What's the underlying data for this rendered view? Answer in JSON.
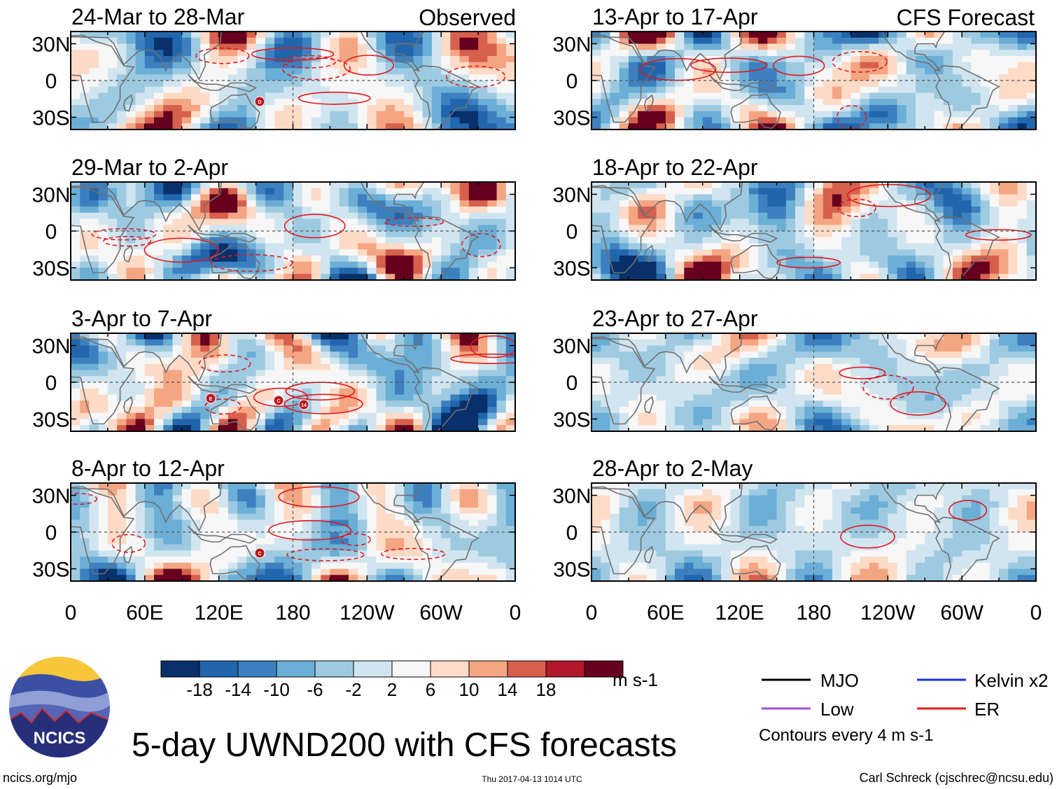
{
  "figure": {
    "title": "5-day UWND200 with CFS forecasts",
    "source_url": "ncics.org/mjo",
    "timestamp": "Thu 2017-04-13 1014 UTC",
    "credit": "Carl Schreck (cjschrec@ncsu.edu)",
    "logo_text": "NCICS"
  },
  "columns": {
    "left_label": "Observed",
    "right_label": "CFS Forecast"
  },
  "colors": {
    "land": "#707070",
    "er_contour": "#e0191f",
    "mjo": "#000000",
    "kelvin": "#1a2fe0",
    "low": "#a64dd9"
  },
  "chart_data": {
    "type": "heatmap",
    "variable": "200-hPa zonal wind anomaly (5-day mean)",
    "x_ticks": [
      "0",
      "60E",
      "120E",
      "180",
      "120W",
      "60W",
      "0"
    ],
    "x_tick_values": [
      0,
      60,
      120,
      180,
      240,
      300,
      360
    ],
    "y_ticks": [
      "30N",
      "0",
      "30S"
    ],
    "y_tick_values": [
      30,
      0,
      -30
    ],
    "xlim": [
      0,
      360
    ],
    "ylim": [
      -40,
      40
    ],
    "panels": [
      {
        "column": "observed",
        "row": 0,
        "label": "24-Mar to 28-Mar",
        "storms": [
          "D"
        ]
      },
      {
        "column": "observed",
        "row": 1,
        "label": "29-Mar to 2-Apr",
        "storms": []
      },
      {
        "column": "observed",
        "row": 2,
        "label": "3-Apr to 7-Apr",
        "storms": [
          "E",
          "C",
          "14"
        ]
      },
      {
        "column": "observed",
        "row": 3,
        "label": "8-Apr to 12-Apr",
        "storms": [
          "C"
        ]
      },
      {
        "column": "forecast",
        "row": 0,
        "label": "13-Apr to 17-Apr",
        "storms": []
      },
      {
        "column": "forecast",
        "row": 1,
        "label": "18-Apr to 22-Apr",
        "storms": []
      },
      {
        "column": "forecast",
        "row": 2,
        "label": "23-Apr to 27-Apr",
        "storms": []
      },
      {
        "column": "forecast",
        "row": 3,
        "label": "28-Apr to 2-May",
        "storms": []
      }
    ],
    "colorbar": {
      "levels": [
        -18,
        -14,
        -10,
        -6,
        -2,
        2,
        6,
        10,
        14,
        18
      ],
      "tick_labels": [
        "-18",
        "-14",
        "-10",
        "-6",
        "-2",
        "2",
        "6",
        "10",
        "14",
        "18"
      ],
      "colors": [
        "#08306b",
        "#2166ac",
        "#3d80c0",
        "#6baed6",
        "#9ecae1",
        "#d1e5f0",
        "#f7f7f7",
        "#fddbc7",
        "#f4a582",
        "#d6604d",
        "#b2182b",
        "#67001f"
      ],
      "units": "m s-1"
    },
    "legend": [
      {
        "name": "MJO",
        "color": "#000000"
      },
      {
        "name": "Kelvin x2",
        "color": "#1a2fe0"
      },
      {
        "name": "Low",
        "color": "#a64dd9"
      },
      {
        "name": "ER",
        "color": "#e0191f"
      }
    ],
    "contour_note": "Contours every 4 m s-1"
  }
}
